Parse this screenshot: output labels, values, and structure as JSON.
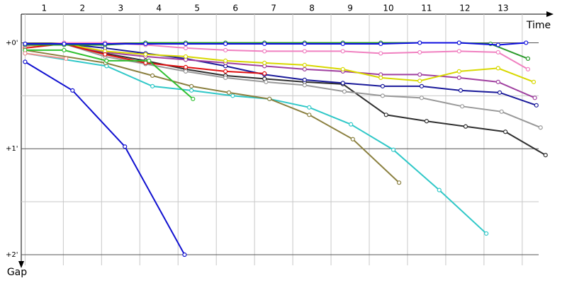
{
  "chart_data": {
    "type": "line",
    "x_label": "Time",
    "y_label": "Gap",
    "xlim": [
      -0.1,
      13.8
    ],
    "ylim": [
      -0.27,
      2.1
    ],
    "xgrid": [
      0,
      1,
      2,
      3,
      4,
      5,
      6,
      7,
      8,
      9,
      10,
      11,
      12,
      13
    ],
    "lap_labels": [
      1,
      2,
      3,
      4,
      5,
      6,
      7,
      8,
      9,
      10,
      11,
      12,
      13
    ],
    "yticks": [
      {
        "value": 0,
        "label": "+0'"
      },
      {
        "value": 1,
        "label": "+1'"
      },
      {
        "value": 2,
        "label": "+2'"
      }
    ],
    "minor_yticks": [
      0.5,
      1.5
    ],
    "grid": true,
    "series": [
      {
        "color": "#1010d0",
        "x": [
          0,
          1.24,
          2.61,
          4.17
        ],
        "values": [
          0.18,
          0.45,
          0.98,
          2.0
        ]
      },
      {
        "color": "#30c8c8",
        "x": [
          0,
          2.13,
          3.33,
          4.35,
          5.43,
          6.39,
          7.43,
          8.52,
          9.63,
          10.83,
          12.06
        ],
        "values": [
          0.1,
          0.22,
          0.41,
          0.45,
          0.5,
          0.53,
          0.61,
          0.77,
          1.01,
          1.39,
          1.8
        ]
      },
      {
        "color": "#8b8040",
        "x": [
          0,
          2.1,
          3.33,
          4.35,
          5.33,
          6.39,
          7.43,
          8.57,
          9.78
        ],
        "values": [
          0.07,
          0.19,
          0.31,
          0.41,
          0.47,
          0.53,
          0.68,
          0.91,
          1.32
        ]
      },
      {
        "color": "#303030",
        "x": [
          0,
          1.02,
          2.09,
          3.15,
          4.2,
          5.24,
          6.26,
          7.31,
          8.31,
          9.44,
          10.5,
          11.52,
          12.56,
          13.61
        ],
        "values": [
          0.03,
          0.01,
          0.1,
          0.17,
          0.25,
          0.31,
          0.34,
          0.37,
          0.39,
          0.68,
          0.74,
          0.79,
          0.84,
          1.06
        ]
      },
      {
        "color": "#999999",
        "x": [
          0,
          1.02,
          2.09,
          3.15,
          4.2,
          5.24,
          6.3,
          7.31,
          8.35,
          9.35,
          10.37,
          11.43,
          12.46,
          13.48
        ],
        "values": [
          0.03,
          0.01,
          0.13,
          0.2,
          0.27,
          0.33,
          0.37,
          0.4,
          0.46,
          0.5,
          0.52,
          0.6,
          0.65,
          0.8
        ]
      },
      {
        "color": "#1a1a9a",
        "x": [
          0,
          1.02,
          2.09,
          3.15,
          4.2,
          5.24,
          6.26,
          7.31,
          8.31,
          9.35,
          10.37,
          11.39,
          12.41,
          13.37
        ],
        "values": [
          0.01,
          0.01,
          0.05,
          0.1,
          0.15,
          0.22,
          0.3,
          0.35,
          0.38,
          0.41,
          0.41,
          0.45,
          0.47,
          0.59
        ]
      },
      {
        "color": "#a040a0",
        "x": [
          0,
          1.02,
          2.09,
          3.15,
          4.2,
          5.24,
          6.26,
          7.31,
          8.31,
          9.3,
          10.32,
          11.35,
          12.37,
          13.33
        ],
        "values": [
          0.01,
          0.01,
          0.09,
          0.13,
          0.16,
          0.19,
          0.22,
          0.25,
          0.27,
          0.3,
          0.3,
          0.33,
          0.37,
          0.52
        ]
      },
      {
        "color": "#d8d800",
        "x": [
          0,
          1.02,
          2.09,
          3.15,
          4.2,
          5.24,
          6.26,
          7.31,
          8.31,
          9.3,
          10.32,
          11.35,
          12.37,
          13.3
        ],
        "values": [
          0.03,
          0.01,
          0.08,
          0.11,
          0.13,
          0.17,
          0.19,
          0.21,
          0.25,
          0.33,
          0.36,
          0.27,
          0.24,
          0.37
        ]
      },
      {
        "color": "#e01010",
        "x": [
          0,
          1.02,
          2.09,
          3.15,
          4.2,
          5.24,
          6.26
        ],
        "values": [
          0.05,
          0.01,
          0.11,
          0.19,
          0.23,
          0.27,
          0.29
        ]
      },
      {
        "color": "#30c030",
        "x": [
          0,
          1.02,
          2.13,
          3.24,
          4.39
        ],
        "values": [
          0.07,
          0.07,
          0.17,
          0.17,
          0.53
        ]
      },
      {
        "color": "#f080c0",
        "x": [
          0,
          1.02,
          2.09,
          3.15,
          4.2,
          5.24,
          6.26,
          7.31,
          8.31,
          9.3,
          10.32,
          11.35,
          12.37,
          13.15
        ],
        "values": [
          0.03,
          0,
          0,
          0.02,
          0.05,
          0.07,
          0.08,
          0.08,
          0.08,
          0.1,
          0.09,
          0.08,
          0.09,
          0.25
        ]
      },
      {
        "color": "#f09090",
        "x": [
          0,
          1.07
        ],
        "values": [
          0.1,
          0.15
        ]
      },
      {
        "color": "#2a9a2a",
        "x": [
          0,
          1.02,
          2.09,
          3.15,
          4.2,
          5.24,
          6.26,
          7.31,
          8.31,
          9.3,
          10.32,
          11.35,
          12.17,
          13.15
        ],
        "values": [
          0.02,
          0.02,
          0.02,
          0,
          0,
          0,
          0,
          0,
          0,
          0,
          0,
          0,
          0.01,
          0.15
        ]
      },
      {
        "color": "#1010e0",
        "x": [
          0,
          1.02,
          2.09,
          3.15,
          4.2,
          5.24,
          6.26,
          7.31,
          8.31,
          9.3,
          10.32,
          11.35,
          12.37,
          13.1
        ],
        "values": [
          0.01,
          0.01,
          0.01,
          0.01,
          0.01,
          0.01,
          0.01,
          0.01,
          0.01,
          0.01,
          0,
          0,
          0.02,
          0
        ]
      }
    ]
  }
}
